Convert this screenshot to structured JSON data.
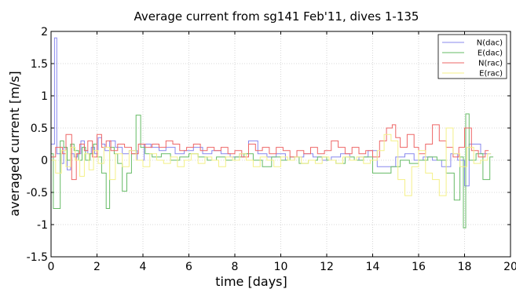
{
  "chart_data": {
    "type": "line",
    "title": "Average current from sg141 Feb'11, dives 1-135",
    "xlabel": "time [days]",
    "ylabel": "averaged current [m/s]",
    "xlim": [
      0,
      20
    ],
    "ylim": [
      -1.5,
      2
    ],
    "xticks": [
      0,
      2,
      4,
      6,
      8,
      10,
      12,
      14,
      16,
      18,
      20
    ],
    "yticks": [
      -1.5,
      -1,
      -0.5,
      0,
      0.5,
      1,
      1.5,
      2
    ],
    "grid": true,
    "legend_position": "top-right",
    "step": true,
    "series": [
      {
        "name": "N(dac)",
        "color": "#8888ee",
        "x": [
          0.0,
          0.15,
          0.25,
          0.45,
          0.55,
          0.7,
          0.85,
          1.0,
          1.15,
          1.3,
          1.45,
          1.6,
          1.75,
          1.9,
          2.05,
          2.2,
          2.35,
          2.55,
          2.8,
          3.1,
          3.4,
          3.75,
          4.05,
          4.35,
          4.7,
          5.0,
          5.4,
          5.8,
          6.2,
          6.6,
          7.0,
          7.4,
          7.8,
          8.2,
          8.6,
          9.0,
          9.4,
          9.8,
          10.2,
          10.6,
          11.0,
          11.4,
          11.8,
          12.2,
          12.6,
          13.0,
          13.4,
          13.8,
          14.2,
          14.6,
          15.0,
          15.4,
          15.8,
          16.2,
          16.6,
          17.0,
          17.4,
          17.7,
          18.0,
          18.2,
          18.4,
          18.7,
          19.0
        ],
        "y": [
          0.25,
          1.9,
          0.1,
          -0.05,
          0.2,
          -0.15,
          0.1,
          0.05,
          0.1,
          0.3,
          0.15,
          0.1,
          0.2,
          0.1,
          0.35,
          0.25,
          0.15,
          0.3,
          0.2,
          0.1,
          0.15,
          0.0,
          0.25,
          0.2,
          0.15,
          0.2,
          0.1,
          0.15,
          0.2,
          0.1,
          0.15,
          0.1,
          0.05,
          0.1,
          0.3,
          0.1,
          0.05,
          0.1,
          0.0,
          0.05,
          0.1,
          0.05,
          0.0,
          0.05,
          0.1,
          0.0,
          0.05,
          0.15,
          -0.1,
          -0.1,
          0.05,
          0.1,
          0.0,
          0.05,
          0.0,
          -0.1,
          0.1,
          0.0,
          -0.4,
          0.25,
          0.25,
          0.1,
          0.1
        ]
      },
      {
        "name": "E(dac)",
        "color": "#66bb66",
        "x": [
          0.0,
          0.1,
          0.4,
          0.55,
          0.7,
          0.85,
          1.0,
          1.2,
          1.35,
          1.5,
          1.7,
          1.85,
          2.0,
          2.2,
          2.4,
          2.55,
          2.75,
          2.9,
          3.1,
          3.3,
          3.5,
          3.7,
          3.9,
          4.1,
          4.4,
          4.8,
          5.2,
          5.6,
          6.0,
          6.4,
          6.8,
          7.2,
          7.6,
          8.0,
          8.4,
          8.8,
          9.2,
          9.6,
          10.0,
          10.4,
          10.8,
          11.2,
          11.6,
          12.0,
          12.4,
          12.8,
          13.2,
          13.6,
          14.0,
          14.4,
          14.8,
          15.2,
          15.6,
          16.0,
          16.4,
          16.8,
          17.2,
          17.55,
          17.8,
          17.95,
          18.05,
          18.2,
          18.5,
          18.8,
          19.1
        ],
        "y": [
          0.1,
          -0.75,
          0.3,
          0.2,
          0.0,
          0.25,
          0.15,
          0.0,
          0.2,
          0.0,
          0.1,
          0.25,
          0.05,
          -0.2,
          -0.75,
          0.2,
          0.1,
          -0.05,
          -0.48,
          -0.2,
          0.1,
          0.7,
          0.2,
          0.1,
          0.05,
          0.1,
          0.0,
          0.05,
          0.1,
          0.05,
          0.0,
          0.05,
          0.0,
          0.05,
          0.1,
          0.0,
          -0.1,
          0.05,
          0.0,
          0.05,
          -0.05,
          0.0,
          0.05,
          0.0,
          -0.05,
          0.05,
          0.0,
          0.05,
          -0.2,
          -0.2,
          -0.1,
          0.0,
          -0.05,
          0.0,
          0.05,
          0.0,
          -0.2,
          -0.62,
          0.05,
          -1.05,
          0.72,
          0.0,
          0.1,
          -0.3,
          0.05
        ]
      },
      {
        "name": "N(rac)",
        "color": "#ee6666",
        "x": [
          0.0,
          0.2,
          0.5,
          0.65,
          0.9,
          1.1,
          1.25,
          1.45,
          1.6,
          1.8,
          2.0,
          2.2,
          2.4,
          2.6,
          2.9,
          3.2,
          3.5,
          3.8,
          4.1,
          4.4,
          4.7,
          5.0,
          5.3,
          5.6,
          5.9,
          6.2,
          6.5,
          6.8,
          7.1,
          7.4,
          7.7,
          8.0,
          8.3,
          8.6,
          8.9,
          9.2,
          9.5,
          9.8,
          10.1,
          10.4,
          10.7,
          11.0,
          11.3,
          11.6,
          11.9,
          12.2,
          12.5,
          12.8,
          13.1,
          13.4,
          13.7,
          14.0,
          14.3,
          14.6,
          14.85,
          15.0,
          15.2,
          15.5,
          15.8,
          16.0,
          16.3,
          16.6,
          16.9,
          17.2,
          17.5,
          17.75,
          18.0,
          18.3,
          18.6,
          18.9
        ],
        "y": [
          0.05,
          0.2,
          0.1,
          0.4,
          -0.3,
          0.1,
          0.25,
          0.15,
          0.3,
          0.05,
          0.4,
          0.2,
          0.3,
          0.15,
          0.25,
          0.2,
          0.1,
          0.25,
          0.2,
          0.25,
          0.2,
          0.3,
          0.25,
          0.15,
          0.2,
          0.25,
          0.15,
          0.2,
          0.15,
          0.2,
          0.1,
          0.15,
          0.05,
          0.25,
          0.15,
          0.2,
          0.1,
          0.2,
          0.15,
          0.05,
          0.15,
          0.1,
          0.2,
          0.1,
          0.15,
          0.3,
          0.2,
          0.1,
          0.2,
          0.1,
          0.15,
          0.05,
          0.3,
          0.5,
          0.55,
          0.35,
          0.2,
          0.4,
          0.2,
          0.1,
          0.25,
          0.55,
          0.3,
          0.2,
          0.05,
          0.2,
          0.5,
          0.15,
          0.05,
          0.15
        ]
      },
      {
        "name": "E(rac)",
        "color": "#f4f088",
        "x": [
          0.0,
          0.2,
          0.45,
          0.65,
          0.85,
          1.05,
          1.25,
          1.45,
          1.65,
          1.85,
          2.05,
          2.3,
          2.55,
          2.8,
          3.1,
          3.4,
          3.7,
          4.0,
          4.3,
          4.6,
          4.9,
          5.2,
          5.5,
          5.8,
          6.1,
          6.4,
          6.7,
          7.0,
          7.3,
          7.6,
          7.9,
          8.2,
          8.5,
          8.8,
          9.1,
          9.4,
          9.7,
          10.0,
          10.3,
          10.6,
          10.9,
          11.2,
          11.5,
          11.8,
          12.1,
          12.4,
          12.7,
          13.0,
          13.3,
          13.6,
          13.9,
          14.2,
          14.5,
          14.8,
          15.1,
          15.4,
          15.7,
          16.0,
          16.3,
          16.6,
          16.9,
          17.2,
          17.5,
          17.8,
          18.1,
          18.4,
          18.7,
          19.0
        ],
        "y": [
          0.0,
          -0.2,
          0.15,
          -0.1,
          0.2,
          0.0,
          -0.25,
          0.1,
          -0.15,
          0.15,
          -0.05,
          0.2,
          -0.3,
          0.1,
          -0.1,
          0.15,
          0.0,
          -0.1,
          0.1,
          0.0,
          -0.05,
          0.05,
          -0.1,
          0.0,
          0.1,
          -0.05,
          0.05,
          0.0,
          -0.1,
          0.05,
          0.0,
          0.1,
          0.0,
          -0.1,
          0.05,
          0.0,
          -0.1,
          0.05,
          0.0,
          0.05,
          -0.05,
          0.0,
          -0.05,
          0.05,
          0.0,
          -0.05,
          0.05,
          0.0,
          0.05,
          -0.05,
          0.0,
          0.15,
          0.4,
          0.3,
          -0.3,
          -0.55,
          -0.1,
          0.15,
          -0.2,
          -0.3,
          -0.55,
          0.5,
          0.1,
          -0.1,
          0.2,
          -0.05,
          0.0,
          0.1
        ]
      }
    ]
  }
}
